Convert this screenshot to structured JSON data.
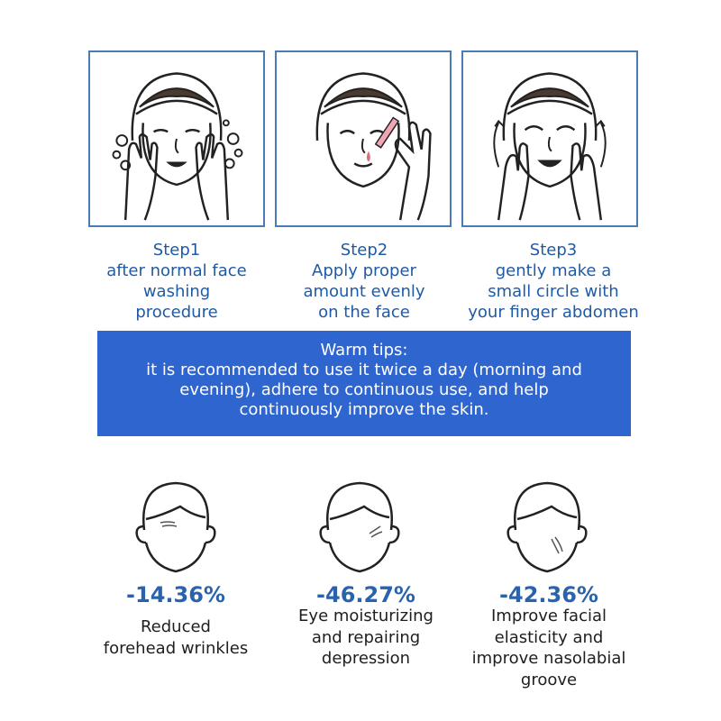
{
  "steps": [
    {
      "title": "Step1",
      "lines": [
        "after normal face",
        "washing",
        "procedure"
      ]
    },
    {
      "title": "Step2",
      "lines": [
        "Apply proper",
        "amount evenly",
        "on the face"
      ]
    },
    {
      "title": "Step3",
      "lines": [
        "gently make a",
        "small circle with",
        "your finger abdomen"
      ]
    }
  ],
  "tips": {
    "title": "Warm tips:",
    "lines": [
      "it is recommended to use it twice a day (morning and",
      "evening), adhere to continuous use, and help",
      "continuously improve the skin."
    ]
  },
  "results": [
    {
      "value": "-14.36%",
      "lines": [
        "Reduced",
        "forehead wrinkles"
      ]
    },
    {
      "value": "-46.27%",
      "lines": [
        "Eye moisturizing",
        "and repairing",
        "depression"
      ]
    },
    {
      "value": "-42.36%",
      "lines": [
        "Improve facial",
        "elasticity and",
        "improve nasolabial",
        "groove"
      ]
    }
  ],
  "colors": {
    "accent": "#2f65cf",
    "step_text": "#1f5aa6",
    "panel_border": "#4a7bb5"
  },
  "icons": [
    "face-washing-illustration",
    "serum-dropper-illustration",
    "face-massage-illustration",
    "forehead-face-icon",
    "eye-face-icon",
    "cheek-face-icon"
  ]
}
